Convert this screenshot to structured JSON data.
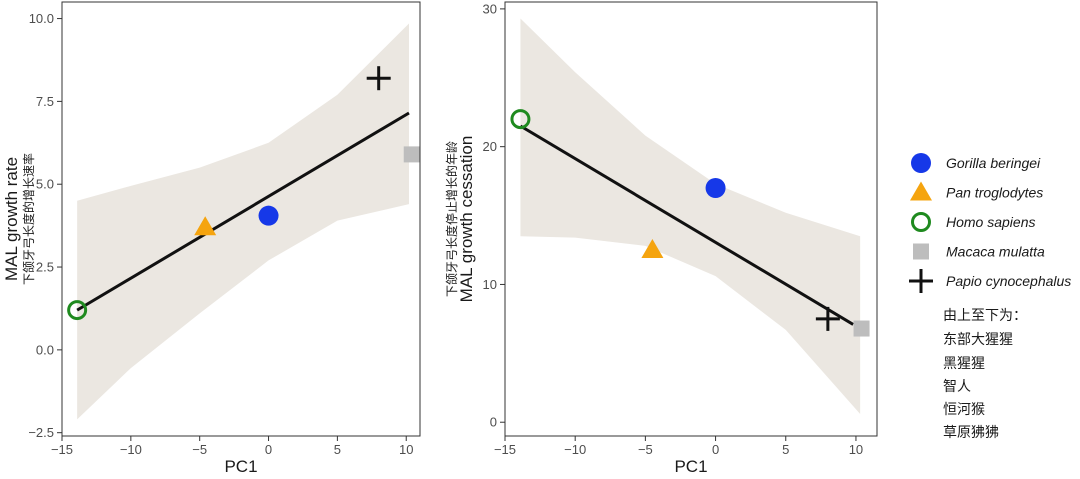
{
  "chart_data": [
    {
      "type": "scatter",
      "title": "",
      "xlabel": "PC1",
      "ylabel": "MAL growth rate",
      "ylabel_cn": "下颌牙弓长度的增长速率",
      "xlim": [
        -15,
        11
      ],
      "ylim": [
        -2.6,
        10.5
      ],
      "xticks": [
        -15,
        -10,
        -5,
        0,
        5,
        10
      ],
      "yticks": [
        -2.5,
        0.0,
        2.5,
        5.0,
        7.5,
        10.0
      ],
      "xtick_labels": [
        "−15",
        "−10",
        "−5",
        "0",
        "5",
        "10"
      ],
      "ytick_labels": [
        "−2.5",
        "0.0",
        "2.5",
        "5.0",
        "7.5",
        "10.0"
      ],
      "points": [
        {
          "species": "Gorilla beringei",
          "x": 0.0,
          "y": 4.05
        },
        {
          "species": "Pan troglodytes",
          "x": -4.6,
          "y": 3.7
        },
        {
          "species": "Homo sapiens",
          "x": -13.9,
          "y": 1.2
        },
        {
          "species": "Macaca mulatta",
          "x": 10.4,
          "y": 5.9
        },
        {
          "species": "Papio cynocephalus",
          "x": 8.0,
          "y": 8.2
        }
      ],
      "fit_line": {
        "x": [
          -13.9,
          10.2
        ],
        "y": [
          1.2,
          7.15
        ]
      },
      "ci_band": {
        "x": [
          -13.9,
          -10,
          -5,
          0,
          5,
          10.2
        ],
        "upper": [
          4.5,
          4.95,
          5.5,
          6.25,
          7.7,
          9.85
        ],
        "lower": [
          -2.1,
          -0.55,
          1.1,
          2.7,
          3.9,
          4.4
        ]
      }
    },
    {
      "type": "scatter",
      "title": "",
      "xlabel": "PC1",
      "ylabel": "MAL growth cessation",
      "ylabel_cn": "下颌牙弓长度停止增长的年龄",
      "xlim": [
        -15,
        11.5
      ],
      "ylim": [
        -1,
        30.5
      ],
      "xticks": [
        -15,
        -10,
        -5,
        0,
        5,
        10
      ],
      "yticks": [
        0,
        10,
        20,
        30
      ],
      "xtick_labels": [
        "−15",
        "−10",
        "−5",
        "0",
        "5",
        "10"
      ],
      "ytick_labels": [
        "0",
        "10",
        "20",
        "30"
      ],
      "points": [
        {
          "species": "Gorilla beringei",
          "x": 0.0,
          "y": 17.0
        },
        {
          "species": "Pan troglodytes",
          "x": -4.5,
          "y": 12.5
        },
        {
          "species": "Homo sapiens",
          "x": -13.9,
          "y": 22.0
        },
        {
          "species": "Macaca mulatta",
          "x": 10.4,
          "y": 6.8
        },
        {
          "species": "Papio cynocephalus",
          "x": 8.0,
          "y": 7.5
        }
      ],
      "fit_line": {
        "x": [
          -13.9,
          9.8
        ],
        "y": [
          21.5,
          7.1
        ]
      },
      "ci_band": {
        "x": [
          -13.9,
          -10,
          -5,
          0,
          5,
          10.3
        ],
        "upper": [
          29.3,
          25.4,
          20.8,
          17.3,
          15.2,
          13.5
        ],
        "lower": [
          13.5,
          13.4,
          12.8,
          10.6,
          6.7,
          0.6
        ]
      }
    }
  ],
  "legend": {
    "items": [
      {
        "label": "Gorilla beringei",
        "shape": "circle",
        "color": "#1638e8"
      },
      {
        "label": "Pan troglodytes",
        "shape": "triangle",
        "color": "#f5a40f"
      },
      {
        "label": "Homo sapiens",
        "shape": "ring",
        "color": "#1f8a1f"
      },
      {
        "label": "Macaca mulatta",
        "shape": "square",
        "color": "#bdbdbd"
      },
      {
        "label": "Papio cynocephalus",
        "shape": "cross",
        "color": "#111111"
      }
    ],
    "note_title": "由上至下为：",
    "note_lines": [
      "东部大猩猩",
      "黑猩猩",
      "智人",
      "恒河猴",
      "草原狒狒"
    ]
  },
  "colors": {
    "band": "#ebe7e1",
    "line": "#111111",
    "axis": "#333333"
  }
}
